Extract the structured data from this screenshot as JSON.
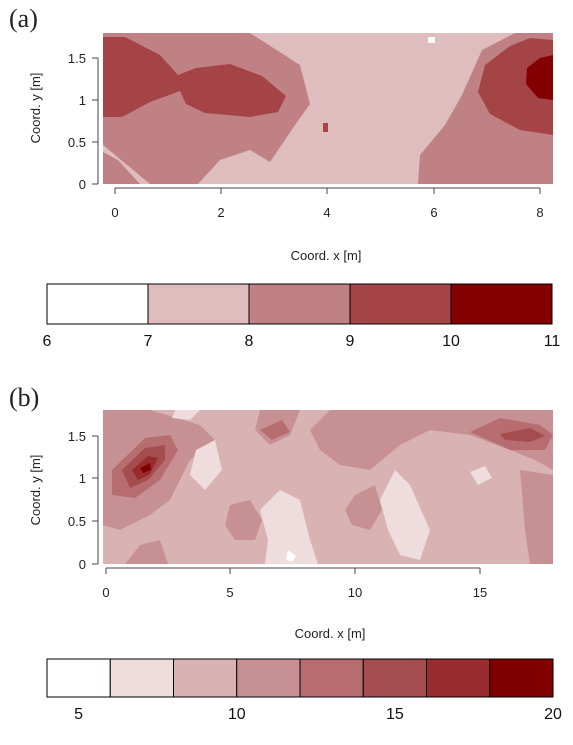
{
  "chart_data": [
    {
      "panel_label": "(a)",
      "type": "heatmap",
      "xlabel": "Coord. x [m]",
      "ylabel": "Coord. y [m]",
      "xlim": [
        -0.3,
        8.2
      ],
      "ylim": [
        0,
        1.8
      ],
      "xticks": [
        "0",
        "2",
        "4",
        "6",
        "8"
      ],
      "yticks": [
        "0",
        "0.5",
        "1",
        "1.5"
      ],
      "grid": false,
      "colorbar": {
        "levels": [
          6,
          7,
          8,
          9,
          10,
          11
        ],
        "tick_labels": [
          "6",
          "7",
          "8",
          "9",
          "10",
          "11"
        ],
        "colors": [
          "#ffffff",
          "#dfbdbf",
          "#c08184",
          "#a44447",
          "#840000"
        ]
      }
    },
    {
      "panel_label": "(b)",
      "type": "heatmap",
      "xlabel": "Coord. x [m]",
      "ylabel": "Coord. y [m]",
      "xlim": [
        -0.5,
        18
      ],
      "ylim": [
        0,
        1.8
      ],
      "xticks": [
        "0",
        "5",
        "10",
        "15"
      ],
      "yticks": [
        "0",
        "0.5",
        "1",
        "1.5"
      ],
      "grid": false,
      "colorbar": {
        "levels": [
          4,
          6,
          8,
          10,
          12,
          14,
          16,
          18,
          20
        ],
        "tick_labels": [
          "5",
          "10",
          "15",
          "20"
        ],
        "tick_values": [
          5,
          10,
          15,
          20
        ],
        "colors": [
          "#ffffff",
          "#efdcdc",
          "#d9b2b3",
          "#c79194",
          "#b76d70",
          "#a54c4f",
          "#972b2d",
          "#800000"
        ]
      }
    }
  ]
}
